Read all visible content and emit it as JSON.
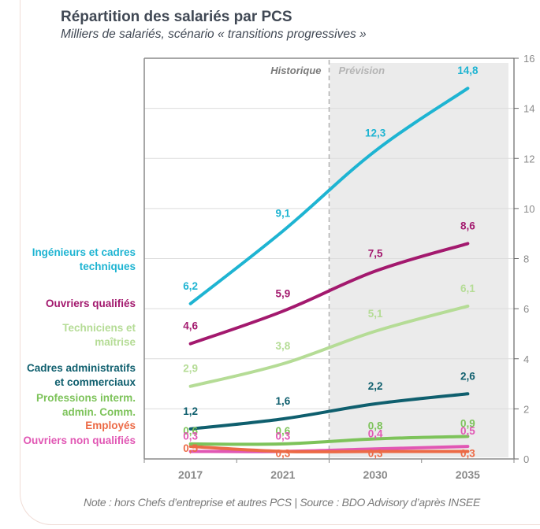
{
  "title": "Répartition des salariés par PCS",
  "subtitle": "Milliers de salariés, scénario « transitions progressives »",
  "note": "Note : hors Chefs d’entreprise et autres PCS | Source : BDO Advisory d’après INSEE",
  "chart_data": {
    "type": "line",
    "title": "Répartition des salariés par PCS",
    "subtitle": "Milliers de salariés, scénario « transitions progressives »",
    "xlabel": "",
    "ylabel": "",
    "categories": [
      "2017",
      "2021",
      "2030",
      "2035"
    ],
    "ylim": [
      0,
      16
    ],
    "yticks": [
      0,
      2,
      4,
      6,
      8,
      10,
      12,
      14,
      16
    ],
    "y_axis_side": "right",
    "grid": true,
    "regions": [
      {
        "label": "Historique",
        "from": "2017",
        "to": "2021"
      },
      {
        "label": "Prévision",
        "from": "2030",
        "to": "2035",
        "shaded": true
      }
    ],
    "legend": "left-inline",
    "series": [
      {
        "name": "Ingénieurs et cadres techniques",
        "name_lines": [
          "Ingénieurs et cadres",
          "techniques"
        ],
        "color": "#1eb4d2",
        "values": [
          6.2,
          9.1,
          12.3,
          14.8
        ],
        "labels": [
          "6,2",
          "9,1",
          "12,3",
          "14,8"
        ]
      },
      {
        "name": "Ouvriers qualifiés",
        "name_lines": [
          "Ouvriers qualifiés"
        ],
        "color": "#a3196e",
        "values": [
          4.6,
          5.9,
          7.5,
          8.6
        ],
        "labels": [
          "4,6",
          "5,9",
          "7,5",
          "8,6"
        ]
      },
      {
        "name": "Techniciens et maîtrise",
        "name_lines": [
          "Techniciens et",
          "maîtrise"
        ],
        "color": "#b5dc96",
        "values": [
          2.9,
          3.8,
          5.1,
          6.1
        ],
        "labels": [
          "2,9",
          "3,8",
          "5,1",
          "6,1"
        ]
      },
      {
        "name": "Cadres administratifs et commerciaux",
        "name_lines": [
          "Cadres administratifs",
          "et commerciaux"
        ],
        "color": "#0f5f6e",
        "values": [
          1.2,
          1.6,
          2.2,
          2.6
        ],
        "labels": [
          "1,2",
          "1,6",
          "2,2",
          "2,6"
        ]
      },
      {
        "name": "Professions interm. admin. Comm.",
        "name_lines": [
          "Professions interm.",
          "admin. Comm."
        ],
        "color": "#7dc35a",
        "values": [
          0.6,
          0.6,
          0.8,
          0.9
        ],
        "labels": [
          "0,6",
          "0,6",
          "0,8",
          "0,9"
        ]
      },
      {
        "name": "Employés",
        "name_lines": [
          "Employés"
        ],
        "color": "#ec6a46",
        "values": [
          0.5,
          0.3,
          0.3,
          0.3
        ],
        "labels": [
          "0,5",
          "0,3",
          "0,3",
          "0,3"
        ]
      },
      {
        "name": "Ouvriers non qualifiés",
        "name_lines": [
          "Ouvriers non qualifiés"
        ],
        "color": "#e157b4",
        "values": [
          0.3,
          0.3,
          0.4,
          0.5
        ],
        "labels": [
          "0,3",
          "0,3",
          "0,4",
          "0,5"
        ]
      }
    ]
  }
}
